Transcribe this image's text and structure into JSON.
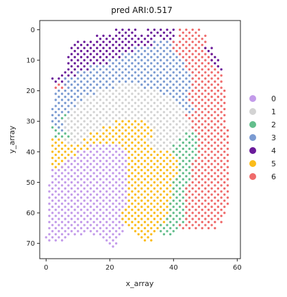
{
  "chart_data": {
    "type": "scatter",
    "title": "pred ARI:0.517",
    "xlabel": "x_array",
    "ylabel": "y_array",
    "xlim": [
      -2,
      61
    ],
    "ylim": [
      75,
      -3
    ],
    "y_inverted": true,
    "xticks": [
      0,
      20,
      40,
      60
    ],
    "yticks": [
      0,
      10,
      20,
      30,
      40,
      50,
      60,
      70
    ],
    "grid": false,
    "legend_position": "right",
    "series": [
      {
        "name": "0",
        "color": "#c39bea"
      },
      {
        "name": "1",
        "color": "#d3d3d3"
      },
      {
        "name": "2",
        "color": "#63be8c"
      },
      {
        "name": "3",
        "color": "#7b9bd2"
      },
      {
        "name": "4",
        "color": "#6a1b9a"
      },
      {
        "name": "5",
        "color": "#fbbc1a"
      },
      {
        "name": "6",
        "color": "#ef6b6b"
      }
    ],
    "clusters_by_row": [
      {
        "y": 0,
        "segments": [
          [
            22,
            28,
            "4"
          ],
          [
            32,
            40,
            "4"
          ],
          [
            42,
            48,
            "6"
          ]
        ]
      },
      {
        "y": 2,
        "segments": [
          [
            16,
            34,
            "4"
          ],
          [
            36,
            40,
            "4"
          ],
          [
            42,
            50,
            "6"
          ]
        ]
      },
      {
        "y": 4,
        "segments": [
          [
            9,
            34,
            "4"
          ],
          [
            34,
            40,
            "3"
          ],
          [
            40,
            50,
            "6"
          ]
        ]
      },
      {
        "y": 6,
        "segments": [
          [
            8,
            28,
            "4"
          ],
          [
            28,
            40,
            "3"
          ],
          [
            40,
            50,
            "6"
          ],
          [
            50,
            52,
            "4"
          ]
        ]
      },
      {
        "y": 8,
        "segments": [
          [
            7,
            24,
            "4"
          ],
          [
            24,
            42,
            "3"
          ],
          [
            42,
            52,
            "6"
          ],
          [
            52,
            53,
            "4"
          ]
        ]
      },
      {
        "y": 10,
        "segments": [
          [
            7,
            20,
            "4"
          ],
          [
            20,
            44,
            "3"
          ],
          [
            44,
            52,
            "6"
          ],
          [
            52,
            54,
            "4"
          ]
        ]
      },
      {
        "y": 12,
        "segments": [
          [
            7,
            14,
            "4"
          ],
          [
            14,
            44,
            "3"
          ],
          [
            44,
            54,
            "6"
          ],
          [
            54,
            55,
            "4"
          ]
        ]
      },
      {
        "y": 14,
        "segments": [
          [
            5,
            10,
            "4"
          ],
          [
            10,
            46,
            "3"
          ],
          [
            46,
            55,
            "6"
          ]
        ]
      },
      {
        "y": 16,
        "segments": [
          [
            2,
            6,
            "4"
          ],
          [
            6,
            46,
            "3"
          ],
          [
            46,
            55,
            "6"
          ]
        ]
      },
      {
        "y": 18,
        "segments": [
          [
            3,
            6,
            "6"
          ],
          [
            6,
            22,
            "3"
          ],
          [
            22,
            30,
            "1"
          ],
          [
            30,
            46,
            "3"
          ],
          [
            46,
            55,
            "6"
          ]
        ]
      },
      {
        "y": 20,
        "segments": [
          [
            3,
            16,
            "3"
          ],
          [
            16,
            36,
            "1"
          ],
          [
            36,
            45,
            "3"
          ],
          [
            45,
            56,
            "6"
          ]
        ]
      },
      {
        "y": 22,
        "segments": [
          [
            3,
            12,
            "3"
          ],
          [
            12,
            40,
            "1"
          ],
          [
            40,
            45,
            "3"
          ],
          [
            45,
            56,
            "6"
          ]
        ]
      },
      {
        "y": 24,
        "segments": [
          [
            3,
            10,
            "3"
          ],
          [
            10,
            42,
            "1"
          ],
          [
            42,
            46,
            "3"
          ],
          [
            46,
            56,
            "6"
          ]
        ]
      },
      {
        "y": 26,
        "segments": [
          [
            2,
            8,
            "3"
          ],
          [
            8,
            44,
            "1"
          ],
          [
            44,
            47,
            "3"
          ],
          [
            47,
            56,
            "6"
          ]
        ]
      },
      {
        "y": 28,
        "segments": [
          [
            2,
            5,
            "3"
          ],
          [
            5,
            7,
            "2"
          ],
          [
            7,
            44,
            "1"
          ],
          [
            44,
            56,
            "6"
          ]
        ]
      },
      {
        "y": 30,
        "segments": [
          [
            2,
            6,
            "3"
          ],
          [
            6,
            22,
            "1"
          ],
          [
            22,
            32,
            "5"
          ],
          [
            32,
            46,
            "1"
          ],
          [
            46,
            56,
            "6"
          ]
        ]
      },
      {
        "y": 32,
        "segments": [
          [
            2,
            4,
            "2"
          ],
          [
            4,
            6,
            "3"
          ],
          [
            6,
            18,
            "1"
          ],
          [
            18,
            34,
            "5"
          ],
          [
            34,
            46,
            "1"
          ],
          [
            46,
            57,
            "6"
          ]
        ]
      },
      {
        "y": 34,
        "segments": [
          [
            3,
            8,
            "2"
          ],
          [
            8,
            14,
            "1"
          ],
          [
            14,
            34,
            "5"
          ],
          [
            34,
            44,
            "1"
          ],
          [
            44,
            48,
            "2"
          ],
          [
            48,
            57,
            "6"
          ]
        ]
      },
      {
        "y": 36,
        "segments": [
          [
            2,
            6,
            "5"
          ],
          [
            6,
            12,
            "1"
          ],
          [
            12,
            32,
            "5"
          ],
          [
            32,
            42,
            "1"
          ],
          [
            42,
            48,
            "2"
          ],
          [
            48,
            57,
            "6"
          ]
        ]
      },
      {
        "y": 38,
        "segments": [
          [
            2,
            14,
            "5"
          ],
          [
            14,
            24,
            "0"
          ],
          [
            24,
            34,
            "5"
          ],
          [
            34,
            40,
            "1"
          ],
          [
            40,
            48,
            "2"
          ],
          [
            48,
            57,
            "6"
          ]
        ]
      },
      {
        "y": 40,
        "segments": [
          [
            2,
            10,
            "5"
          ],
          [
            10,
            26,
            "0"
          ],
          [
            26,
            40,
            "5"
          ],
          [
            40,
            48,
            "2"
          ],
          [
            48,
            57,
            "6"
          ]
        ]
      },
      {
        "y": 42,
        "segments": [
          [
            2,
            7,
            "5"
          ],
          [
            7,
            26,
            "0"
          ],
          [
            26,
            42,
            "5"
          ],
          [
            42,
            47,
            "2"
          ],
          [
            47,
            57,
            "6"
          ]
        ]
      },
      {
        "y": 44,
        "segments": [
          [
            2,
            5,
            "5"
          ],
          [
            5,
            26,
            "0"
          ],
          [
            26,
            42,
            "5"
          ],
          [
            42,
            46,
            "2"
          ],
          [
            46,
            57,
            "6"
          ]
        ]
      },
      {
        "y": 46,
        "segments": [
          [
            2,
            26,
            "0"
          ],
          [
            26,
            42,
            "5"
          ],
          [
            42,
            46,
            "2"
          ],
          [
            46,
            57,
            "6"
          ]
        ]
      },
      {
        "y": 48,
        "segments": [
          [
            2,
            26,
            "0"
          ],
          [
            26,
            41,
            "5"
          ],
          [
            41,
            46,
            "2"
          ],
          [
            46,
            57,
            "6"
          ]
        ]
      },
      {
        "y": 50,
        "segments": [
          [
            1,
            26,
            "0"
          ],
          [
            26,
            40,
            "5"
          ],
          [
            40,
            45,
            "2"
          ],
          [
            45,
            57,
            "6"
          ]
        ]
      },
      {
        "y": 52,
        "segments": [
          [
            1,
            26,
            "0"
          ],
          [
            26,
            40,
            "5"
          ],
          [
            40,
            44,
            "2"
          ],
          [
            44,
            57,
            "6"
          ]
        ]
      },
      {
        "y": 54,
        "segments": [
          [
            1,
            26,
            "0"
          ],
          [
            26,
            40,
            "5"
          ],
          [
            40,
            44,
            "2"
          ],
          [
            44,
            57,
            "6"
          ]
        ]
      },
      {
        "y": 56,
        "segments": [
          [
            1,
            26,
            "0"
          ],
          [
            26,
            39,
            "5"
          ],
          [
            39,
            44,
            "2"
          ],
          [
            44,
            57,
            "6"
          ]
        ]
      },
      {
        "y": 58,
        "segments": [
          [
            1,
            25,
            "0"
          ],
          [
            25,
            39,
            "5"
          ],
          [
            39,
            44,
            "2"
          ],
          [
            44,
            56,
            "6"
          ]
        ]
      },
      {
        "y": 60,
        "segments": [
          [
            1,
            24,
            "0"
          ],
          [
            24,
            39,
            "5"
          ],
          [
            39,
            44,
            "2"
          ],
          [
            44,
            56,
            "6"
          ]
        ]
      },
      {
        "y": 62,
        "segments": [
          [
            1,
            24,
            "0"
          ],
          [
            24,
            38,
            "5"
          ],
          [
            38,
            44,
            "2"
          ],
          [
            44,
            55,
            "6"
          ]
        ]
      },
      {
        "y": 64,
        "segments": [
          [
            1,
            24,
            "0"
          ],
          [
            26,
            36,
            "5"
          ],
          [
            36,
            42,
            "2"
          ],
          [
            42,
            53,
            "6"
          ]
        ]
      },
      {
        "y": 66,
        "segments": [
          [
            1,
            12,
            "0"
          ],
          [
            14,
            24,
            "0"
          ],
          [
            28,
            34,
            "5"
          ],
          [
            36,
            40,
            "2"
          ]
        ]
      },
      {
        "y": 68,
        "segments": [
          [
            0,
            6,
            "0"
          ],
          [
            18,
            22,
            "0"
          ],
          [
            30,
            33,
            "5"
          ]
        ]
      },
      {
        "y": 70,
        "segments": [
          [
            20,
            22,
            "0"
          ]
        ]
      }
    ]
  }
}
